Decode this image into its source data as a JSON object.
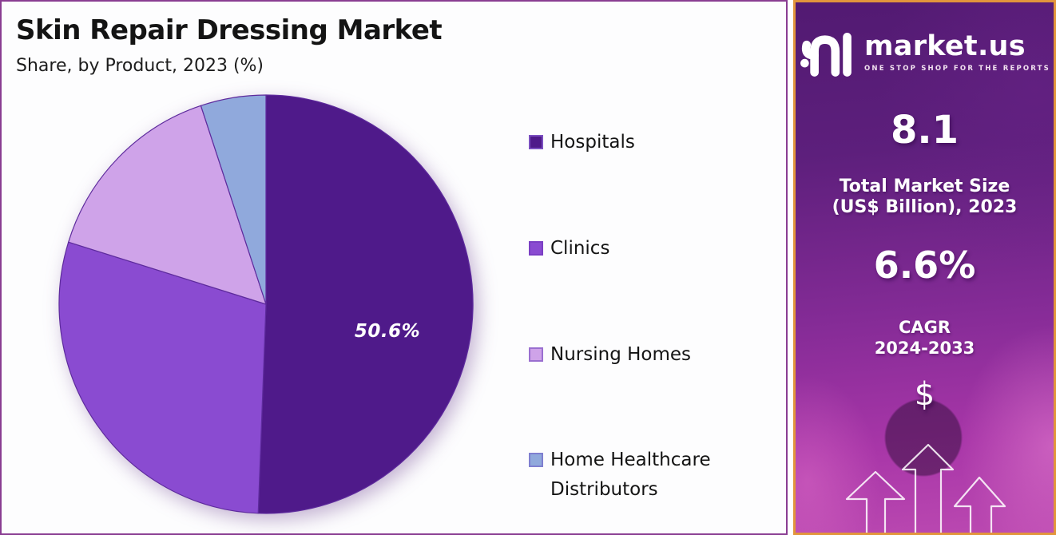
{
  "chart_panel": {
    "border_color": "#8a3d92",
    "background": "#fdfdfe"
  },
  "chart_data": {
    "type": "pie",
    "title": "Skin Repair Dressing Market",
    "subtitle": "Share, by Product, 2023 (%)",
    "labels": [
      "Hospitals",
      "Clinics",
      "Nursing Homes",
      "Home Healthcare Distributors"
    ],
    "values": [
      50.6,
      29.2,
      15.1,
      5.1
    ],
    "value_labels": [
      "50.6%",
      "",
      "",
      ""
    ],
    "colors": [
      "#4f1a8a",
      "#8a4bd1",
      "#cfa3e9",
      "#90a9dc"
    ],
    "swatch_border_colors": [
      "#7b4fc0",
      "#7b3fc4",
      "#9a6fd0",
      "#7f7fd0"
    ],
    "slice_stroke": "#5e2b9d",
    "start_angle_deg": 0,
    "direction": "clockwise",
    "legend_position": "right"
  },
  "sidebar": {
    "border_color": "#e2953c",
    "logo": {
      "brand": "market.us",
      "tagline": "ONE STOP SHOP FOR THE REPORTS"
    },
    "stat_market_size": {
      "value": "8.1",
      "caption_line1": "Total Market Size",
      "caption_line2": "(US$ Billion), 2023"
    },
    "stat_cagr": {
      "value": "6.6%",
      "caption_line1": "CAGR",
      "caption_line2": "2024-2033"
    },
    "dollar_symbol": "$"
  }
}
